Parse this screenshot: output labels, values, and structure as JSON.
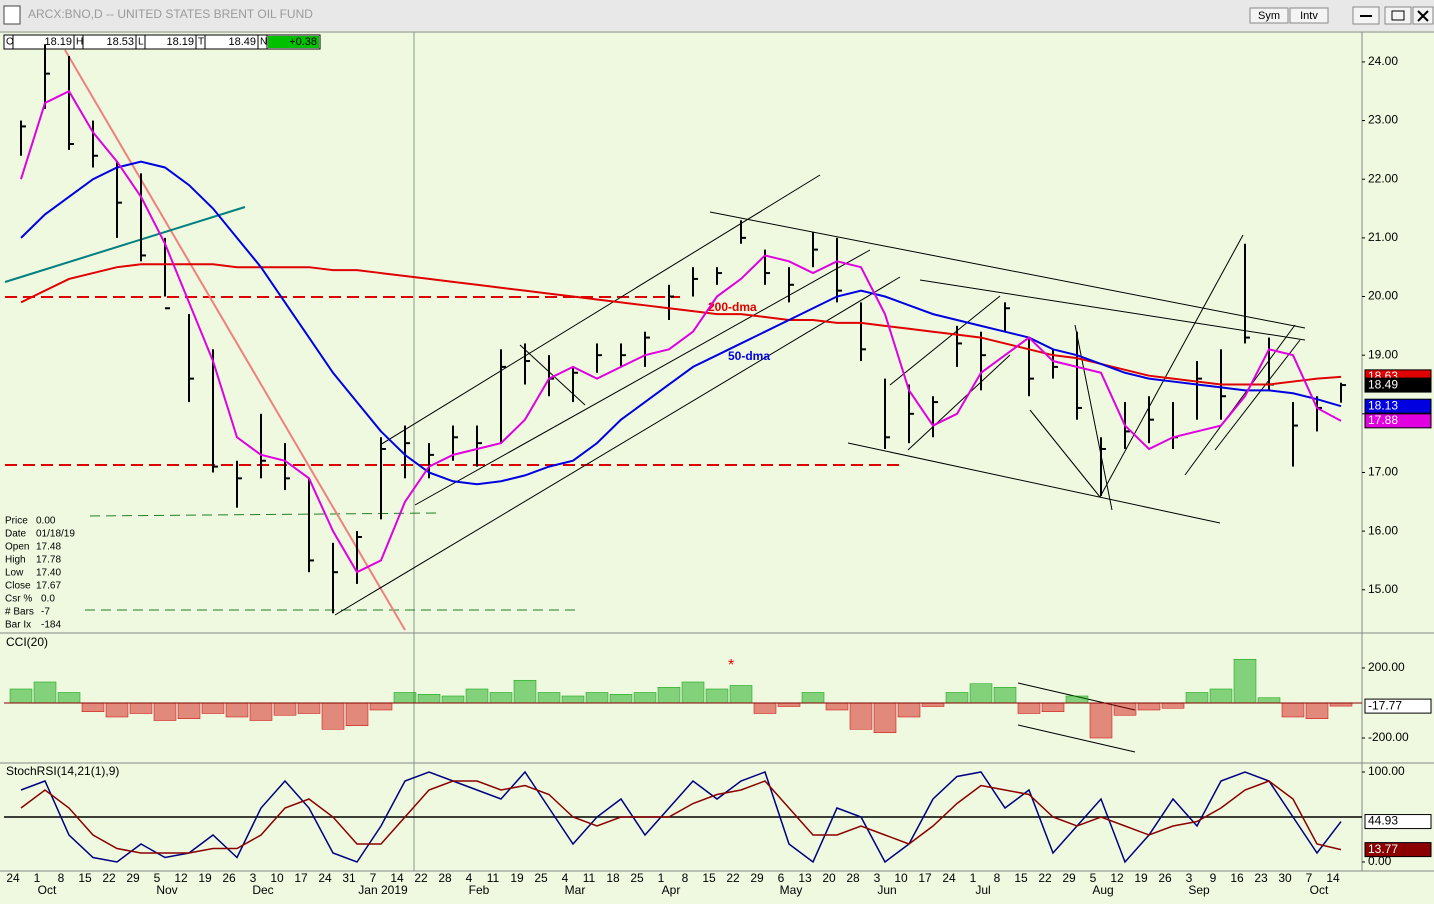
{
  "window": {
    "title": "ARCX:BNO,D -- UNITED STATES BRENT OIL FUND",
    "buttons": [
      "Sym",
      "Intv"
    ]
  },
  "quote_bar": [
    [
      "O",
      "18.19"
    ],
    [
      "H",
      "18.53"
    ],
    [
      "L",
      "18.19"
    ],
    [
      "T",
      "18.49"
    ],
    [
      "N",
      "+0.38"
    ]
  ],
  "data_window": [
    [
      "Price",
      "0.00"
    ],
    [
      "Date",
      "01/18/19"
    ],
    [
      "Open",
      "17.48"
    ],
    [
      "High",
      "17.78"
    ],
    [
      "Low",
      "17.40"
    ],
    [
      "Close",
      "17.67"
    ],
    [
      "Csr %",
      "0.0"
    ],
    [
      "# Bars",
      "-7"
    ],
    [
      "Bar Ix",
      "-184"
    ]
  ],
  "chart_data": [
    {
      "type": "ohlc",
      "categories": [
        "24",
        "1",
        "8",
        "15",
        "22",
        "29",
        "5",
        "12",
        "19",
        "26",
        "3",
        "10",
        "17",
        "24",
        "31",
        "7",
        "14",
        "22",
        "28",
        "4",
        "11",
        "19",
        "25",
        "4",
        "11",
        "18",
        "25",
        "1",
        "8",
        "15",
        "22",
        "29",
        "6",
        "13",
        "20",
        "28",
        "3",
        "10",
        "17",
        "24",
        "1",
        "8",
        "15",
        "22",
        "29",
        "5",
        "12",
        "19",
        "26",
        "3",
        "9",
        "16",
        "23",
        "30",
        "7",
        "14"
      ],
      "months": [
        null,
        "Oct",
        null,
        null,
        null,
        null,
        "Nov",
        null,
        null,
        null,
        "Dec",
        null,
        null,
        null,
        null,
        "Jan 2019",
        null,
        null,
        null,
        "Feb",
        null,
        null,
        null,
        "Mar",
        null,
        null,
        null,
        "Apr",
        null,
        null,
        null,
        null,
        "May",
        null,
        null,
        null,
        "Jun",
        null,
        null,
        null,
        "Jul",
        null,
        null,
        null,
        null,
        "Aug",
        null,
        null,
        null,
        "Sep",
        null,
        null,
        null,
        null,
        "Oct",
        null
      ],
      "high": [
        23.0,
        24.3,
        24.1,
        23.0,
        22.3,
        22.1,
        21.0,
        19.7,
        19.1,
        17.2,
        18.0,
        17.5,
        16.9,
        15.8,
        16.0,
        17.6,
        17.8,
        17.5,
        17.8,
        17.8,
        19.1,
        19.2,
        19.0,
        18.8,
        19.2,
        19.2,
        19.4,
        20.2,
        20.5,
        20.5,
        21.3,
        20.8,
        20.5,
        21.1,
        21.0,
        19.9,
        18.6,
        18.5,
        18.3,
        19.5,
        19.4,
        19.9,
        19.3,
        19.1,
        19.4,
        17.6,
        18.2,
        18.3,
        18.2,
        18.9,
        19.1,
        20.9,
        19.3,
        18.2,
        18.3,
        18.53
      ],
      "low": [
        22.4,
        23.2,
        22.5,
        22.2,
        21.0,
        20.6,
        20.0,
        18.2,
        17.0,
        16.4,
        16.9,
        16.7,
        15.3,
        14.6,
        15.1,
        16.2,
        16.9,
        16.9,
        17.2,
        17.1,
        17.5,
        18.5,
        18.3,
        18.2,
        18.7,
        18.8,
        18.8,
        19.6,
        20.0,
        20.2,
        20.9,
        20.2,
        19.9,
        20.5,
        19.9,
        18.9,
        17.4,
        17.5,
        17.6,
        18.8,
        18.4,
        19.4,
        18.3,
        18.6,
        17.9,
        16.6,
        17.4,
        17.5,
        17.4,
        17.9,
        17.9,
        19.2,
        18.4,
        17.1,
        17.7,
        18.19
      ],
      "close": [
        22.9,
        23.8,
        22.6,
        22.4,
        21.6,
        20.7,
        19.8,
        18.6,
        17.1,
        16.9,
        17.2,
        16.9,
        15.5,
        15.3,
        15.9,
        17.4,
        17.5,
        17.3,
        17.6,
        17.5,
        18.8,
        18.9,
        18.6,
        18.7,
        19.0,
        19.0,
        19.3,
        20.0,
        20.3,
        20.4,
        21.0,
        20.4,
        20.2,
        20.8,
        20.1,
        19.1,
        17.6,
        18.0,
        18.2,
        19.2,
        19.0,
        19.8,
        18.6,
        18.8,
        18.1,
        17.4,
        17.7,
        17.9,
        17.6,
        18.6,
        18.3,
        19.3,
        18.5,
        17.8,
        18.1,
        18.49
      ],
      "color": "#000000",
      "series": [
        {
          "name": "200-dma",
          "color": "#e00000",
          "values": [
            19.9,
            20.1,
            20.3,
            20.4,
            20.5,
            20.55,
            20.55,
            20.55,
            20.55,
            20.5,
            20.5,
            20.5,
            20.5,
            20.45,
            20.45,
            20.4,
            20.35,
            20.3,
            20.25,
            20.2,
            20.15,
            20.1,
            20.05,
            20.0,
            19.95,
            19.9,
            19.85,
            19.8,
            19.75,
            19.7,
            19.7,
            19.65,
            19.6,
            19.6,
            19.55,
            19.55,
            19.5,
            19.45,
            19.4,
            19.35,
            19.3,
            19.2,
            19.1,
            19.0,
            18.95,
            18.85,
            18.75,
            18.65,
            18.6,
            18.55,
            18.5,
            18.5,
            18.5,
            18.55,
            18.6,
            18.63
          ]
        },
        {
          "name": "50-dma",
          "color": "#0000e0",
          "values": [
            21.0,
            21.4,
            21.7,
            22.0,
            22.2,
            22.3,
            22.2,
            21.9,
            21.5,
            21.0,
            20.5,
            19.9,
            19.3,
            18.7,
            18.2,
            17.7,
            17.3,
            17.0,
            16.85,
            16.8,
            16.85,
            16.95,
            17.1,
            17.2,
            17.5,
            17.9,
            18.2,
            18.5,
            18.8,
            19.0,
            19.2,
            19.4,
            19.6,
            19.8,
            20.0,
            20.1,
            20.0,
            19.85,
            19.7,
            19.6,
            19.5,
            19.4,
            19.3,
            19.1,
            19.0,
            18.85,
            18.7,
            18.6,
            18.55,
            18.5,
            18.45,
            18.4,
            18.4,
            18.35,
            18.25,
            18.13
          ]
        },
        {
          "color": "#e000e0",
          "values": [
            22.0,
            23.3,
            23.5,
            22.8,
            22.3,
            21.7,
            20.9,
            19.9,
            18.9,
            17.6,
            17.3,
            17.2,
            16.9,
            16.0,
            15.3,
            15.5,
            16.5,
            17.1,
            17.3,
            17.4,
            17.5,
            17.9,
            18.6,
            18.8,
            18.6,
            18.8,
            19.0,
            19.1,
            19.4,
            20.0,
            20.3,
            20.7,
            20.6,
            20.4,
            20.6,
            20.5,
            19.7,
            18.4,
            17.8,
            18.0,
            18.7,
            19.0,
            19.3,
            18.9,
            18.8,
            18.7,
            17.8,
            17.4,
            17.6,
            17.7,
            17.8,
            18.3,
            19.1,
            19.0,
            18.1,
            17.88
          ]
        }
      ],
      "ylim": [
        14.28,
        24.51
      ],
      "yticks": [
        {
          "value": 15,
          "label": "15.00"
        },
        {
          "value": 16,
          "label": "16.00"
        },
        {
          "value": 17,
          "label": "17.00"
        },
        {
          "value": 18,
          "label": "18.00"
        },
        {
          "value": 19,
          "label": "19.00"
        },
        {
          "value": 20,
          "label": "20.00"
        },
        {
          "value": 21,
          "label": "21.00"
        },
        {
          "value": 22,
          "label": "22.00"
        },
        {
          "value": 23,
          "label": "23.00"
        },
        {
          "value": 24,
          "label": "24.00"
        }
      ]
    },
    {
      "type": "bar",
      "title": "CCI(20)",
      "annotations": [
        "*"
      ],
      "values": [
        80,
        120,
        60,
        -50,
        -80,
        -60,
        -100,
        -90,
        -60,
        -80,
        -100,
        -70,
        -60,
        -150,
        -130,
        -40,
        60,
        50,
        40,
        80,
        60,
        130,
        60,
        40,
        60,
        50,
        60,
        90,
        120,
        80,
        100,
        -60,
        -20,
        60,
        -40,
        -150,
        -170,
        -80,
        -20,
        60,
        110,
        90,
        -60,
        -50,
        40,
        -200,
        -70,
        -40,
        -30,
        60,
        80,
        250,
        30,
        -80,
        -90,
        -17.77
      ],
      "positive_color": "#00a000",
      "negative_color": "#d00000",
      "zero_color": "#8b0000",
      "ylim": [
        -337,
        394
      ],
      "yticks": [
        {
          "value": 200,
          "label": "200.00"
        },
        {
          "value": -200,
          "label": "-200.00"
        }
      ]
    },
    {
      "type": "line",
      "title": "StochRSI(14,21(1),9)",
      "ref_line": 50,
      "series": [
        {
          "color": "#000080",
          "values": [
            80,
            90,
            30,
            5,
            0,
            20,
            5,
            10,
            30,
            5,
            60,
            90,
            60,
            10,
            0,
            40,
            90,
            100,
            90,
            80,
            70,
            100,
            60,
            20,
            50,
            70,
            30,
            60,
            90,
            70,
            90,
            100,
            20,
            0,
            60,
            50,
            0,
            20,
            70,
            95,
            100,
            60,
            80,
            10,
            40,
            70,
            0,
            30,
            70,
            40,
            90,
            100,
            90,
            50,
            10,
            44.93
          ]
        },
        {
          "color": "#8b0000",
          "values": [
            60,
            80,
            60,
            30,
            15,
            10,
            10,
            10,
            15,
            15,
            30,
            60,
            70,
            50,
            20,
            20,
            50,
            80,
            90,
            90,
            80,
            85,
            75,
            50,
            40,
            50,
            50,
            50,
            65,
            75,
            80,
            90,
            60,
            30,
            30,
            40,
            30,
            20,
            40,
            65,
            85,
            80,
            75,
            50,
            40,
            50,
            40,
            30,
            40,
            45,
            60,
            80,
            90,
            70,
            20,
            13.77
          ]
        }
      ],
      "ylim": [
        -8.9,
        108.9
      ],
      "yticks": [
        {
          "value": 100,
          "label": "100.00"
        },
        {
          "value": 0,
          "label": "0.00"
        }
      ]
    }
  ]
}
